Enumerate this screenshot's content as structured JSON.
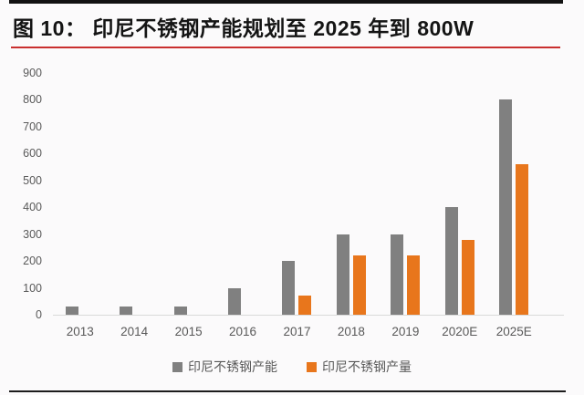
{
  "header": {
    "title": "图 10：  印尼不锈钢产能规划至 2025 年到 800W",
    "underline_color": "#c92f2f",
    "top_rule_color": "#121212"
  },
  "chart_data": {
    "type": "bar",
    "title": "印尼不锈钢产能规划至 2025 年到 800W",
    "categories": [
      "2013",
      "2014",
      "2015",
      "2016",
      "2017",
      "2018",
      "2019",
      "2020E",
      "2025E"
    ],
    "series": [
      {
        "name": "印尼不锈钢产能",
        "color": "#808080",
        "values": [
          30,
          30,
          30,
          100,
          200,
          300,
          300,
          400,
          800
        ]
      },
      {
        "name": "印尼不锈钢产量",
        "color": "#e8761c",
        "values": [
          0,
          0,
          0,
          0,
          70,
          220,
          220,
          280,
          560
        ]
      }
    ],
    "xlabel": "",
    "ylabel": "",
    "ylim": [
      0,
      900
    ],
    "yticks": [
      900,
      800,
      700,
      600,
      500,
      400,
      300,
      200,
      100,
      0
    ],
    "grid": false,
    "legend_position": "bottom",
    "axis_text_color": "#595959",
    "baseline_color": "#d9d9d9"
  }
}
